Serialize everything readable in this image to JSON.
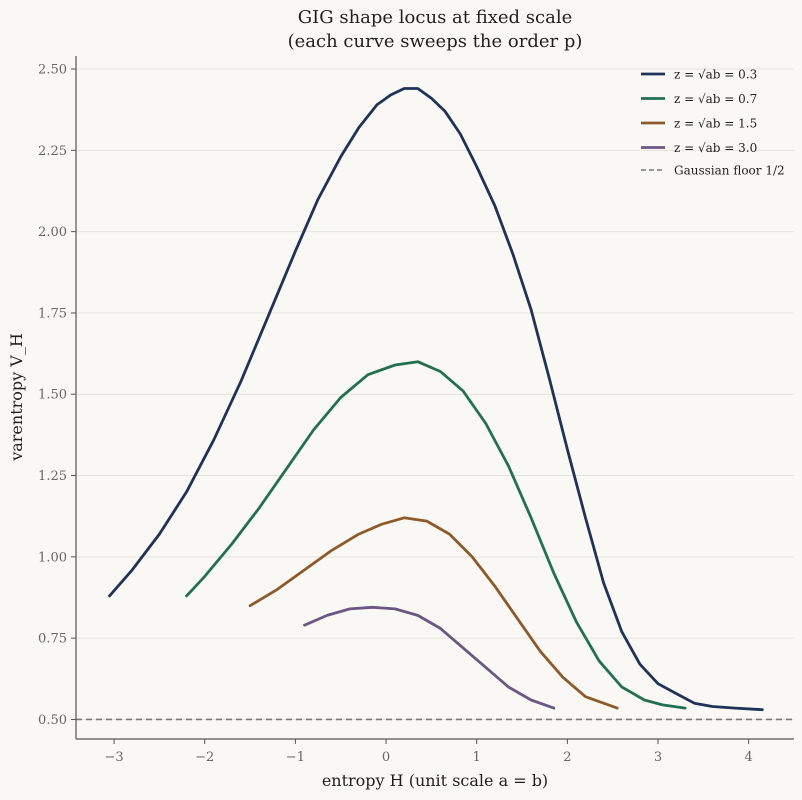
{
  "chart_data": {
    "type": "line",
    "title": "GIG shape locus at fixed scale",
    "subtitle": "(each curve sweeps the order p)",
    "xlabel": "entropy H   (unit scale a = b)",
    "ylabel": "varentropy V_H",
    "xlim": [
      -3.42,
      4.5
    ],
    "ylim": [
      0.44,
      2.54
    ],
    "xticks": [
      "−3",
      "−2",
      "−1",
      "0",
      "1",
      "2",
      "3",
      "4"
    ],
    "xtick_values": [
      -3,
      -2,
      -1,
      0,
      1,
      2,
      3,
      4
    ],
    "yticks": [
      "0.50",
      "0.75",
      "1.00",
      "1.25",
      "1.50",
      "1.75",
      "2.00",
      "2.25",
      "2.50"
    ],
    "ytick_values": [
      0.5,
      0.75,
      1.0,
      1.25,
      1.5,
      1.75,
      2.0,
      2.25,
      2.5
    ],
    "grid": "y-only",
    "legend_position": "top-right",
    "series": [
      {
        "name": "z = √ab = 0.3",
        "color": "#1f3358",
        "x": [
          -3.05,
          -2.8,
          -2.5,
          -2.2,
          -1.9,
          -1.6,
          -1.3,
          -1.0,
          -0.75,
          -0.5,
          -0.3,
          -0.1,
          0.05,
          0.2,
          0.35,
          0.5,
          0.65,
          0.82,
          1.0,
          1.2,
          1.4,
          1.6,
          1.8,
          2.0,
          2.2,
          2.4,
          2.6,
          2.8,
          3.0,
          3.2,
          3.4,
          3.6,
          3.85,
          4.15
        ],
        "y": [
          0.88,
          0.96,
          1.07,
          1.2,
          1.36,
          1.54,
          1.74,
          1.94,
          2.1,
          2.23,
          2.32,
          2.39,
          2.42,
          2.44,
          2.44,
          2.41,
          2.37,
          2.3,
          2.2,
          2.08,
          1.93,
          1.76,
          1.55,
          1.33,
          1.12,
          0.92,
          0.77,
          0.67,
          0.61,
          0.58,
          0.55,
          0.54,
          0.535,
          0.53
        ]
      },
      {
        "name": "z = √ab = 0.7",
        "color": "#23704f",
        "x": [
          -2.2,
          -2.0,
          -1.7,
          -1.4,
          -1.1,
          -0.8,
          -0.5,
          -0.2,
          0.1,
          0.35,
          0.6,
          0.85,
          1.1,
          1.35,
          1.6,
          1.85,
          2.1,
          2.35,
          2.6,
          2.85,
          3.05,
          3.3
        ],
        "y": [
          0.88,
          0.94,
          1.04,
          1.15,
          1.27,
          1.39,
          1.49,
          1.56,
          1.59,
          1.6,
          1.57,
          1.51,
          1.41,
          1.28,
          1.12,
          0.95,
          0.8,
          0.68,
          0.6,
          0.56,
          0.545,
          0.535
        ]
      },
      {
        "name": "z = √ab = 1.5",
        "color": "#8c5a2b",
        "x": [
          -1.5,
          -1.2,
          -0.9,
          -0.6,
          -0.3,
          -0.05,
          0.2,
          0.45,
          0.7,
          0.95,
          1.2,
          1.45,
          1.7,
          1.95,
          2.2,
          2.55
        ],
        "y": [
          0.85,
          0.9,
          0.96,
          1.02,
          1.07,
          1.1,
          1.12,
          1.11,
          1.07,
          1.0,
          0.91,
          0.81,
          0.71,
          0.63,
          0.57,
          0.535
        ]
      },
      {
        "name": "z = √ab = 3.0",
        "color": "#6a5883",
        "x": [
          -0.9,
          -0.65,
          -0.4,
          -0.15,
          0.1,
          0.35,
          0.6,
          0.85,
          1.1,
          1.35,
          1.6,
          1.85
        ],
        "y": [
          0.79,
          0.82,
          0.84,
          0.845,
          0.84,
          0.82,
          0.78,
          0.72,
          0.66,
          0.6,
          0.56,
          0.535
        ]
      }
    ],
    "reference_line": {
      "name": "Gaussian floor 1/2",
      "y": 0.5,
      "color": "#777777",
      "style": "dashed"
    }
  }
}
